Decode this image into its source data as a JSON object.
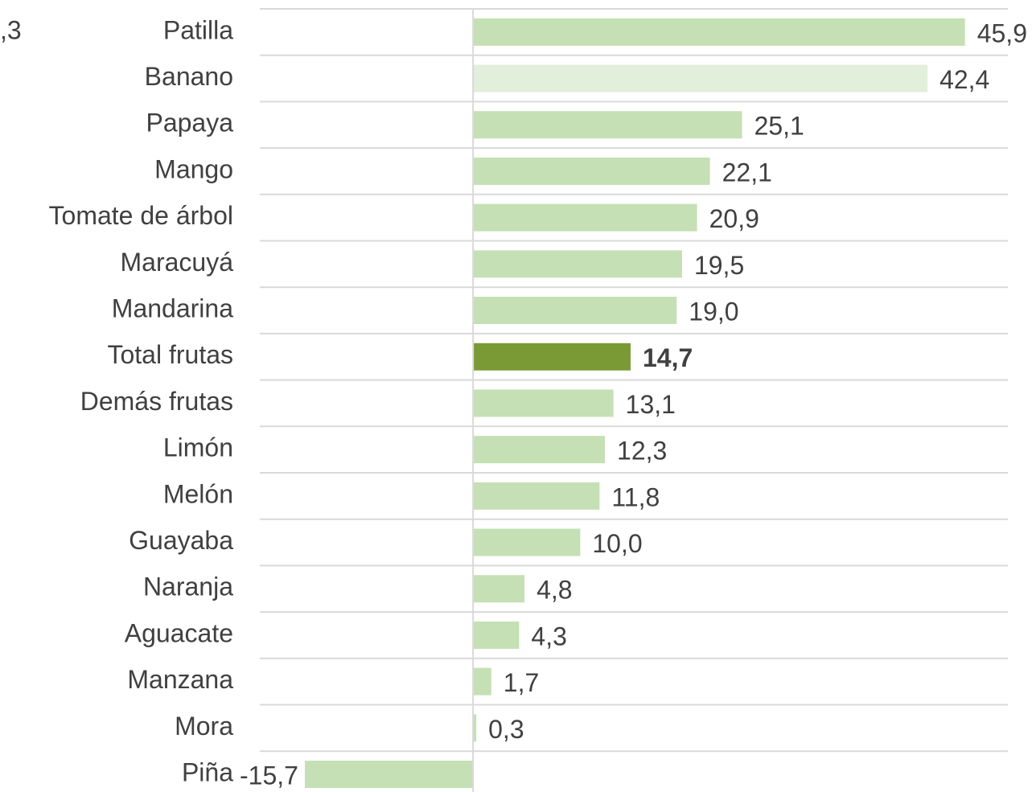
{
  "chart_data": {
    "type": "barh",
    "annotations": [
      ",3"
    ],
    "categories": [
      "Patilla",
      "Banano",
      "Papaya",
      "Mango",
      "Tomate de árbol",
      "Maracuyá",
      "Mandarina",
      "Total frutas",
      "Demás frutas",
      "Limón",
      "Melón",
      "Guayaba",
      "Naranja",
      "Aguacate",
      "Manzana",
      "Mora",
      "Piña"
    ],
    "values": [
      45.9,
      42.4,
      25.1,
      22.1,
      20.9,
      19.5,
      19.0,
      14.7,
      13.1,
      12.3,
      11.8,
      10.0,
      4.8,
      4.3,
      1.7,
      0.3,
      -15.7
    ],
    "value_labels": [
      "45,9",
      "42,4",
      "25,1",
      "22,1",
      "20,9",
      "19,5",
      "19,0",
      "14,7",
      "13,1",
      "12,3",
      "11,8",
      "10,0",
      "4,8",
      "4,3",
      "1,7",
      "0,3",
      "-15,7"
    ],
    "colors": [
      "#c5e0b4",
      "#e2efda",
      "#c5e0b4",
      "#c5e0b4",
      "#c5e0b4",
      "#c5e0b4",
      "#c5e0b4",
      "#7a9a35",
      "#c5e0b4",
      "#c5e0b4",
      "#c5e0b4",
      "#c5e0b4",
      "#c5e0b4",
      "#c5e0b4",
      "#c5e0b4",
      "#c5e0b4",
      "#c5e0b4"
    ],
    "bold_labels": [
      false,
      false,
      false,
      false,
      false,
      false,
      false,
      true,
      false,
      false,
      false,
      false,
      false,
      false,
      false,
      false,
      false
    ],
    "xlim": [
      -19.9,
      49.9
    ],
    "grid": true
  }
}
